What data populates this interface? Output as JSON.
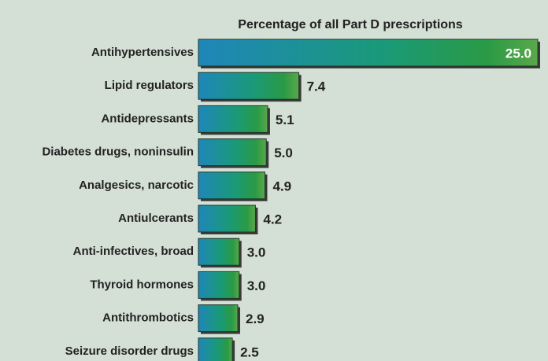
{
  "chart_data": {
    "type": "bar",
    "orientation": "horizontal",
    "subtitle": "Percentage of all Part D prescriptions",
    "categories": [
      "Antihypertensives",
      "Lipid regulators",
      "Antidepressants",
      "Diabetes drugs, noninsulin",
      "Analgesics, narcotic",
      "Antiulcerants",
      "Anti-infectives, broad",
      "Thyroid hormones",
      "Antithrombotics",
      "Seizure disorder drugs"
    ],
    "values": [
      25.0,
      7.4,
      5.1,
      5.0,
      4.9,
      4.2,
      3.0,
      3.0,
      2.9,
      2.5
    ],
    "value_labels": [
      "25.0",
      "7.4",
      "5.1",
      "5.0",
      "4.9",
      "4.2",
      "3.0",
      "3.0",
      "2.9",
      "2.5"
    ],
    "xlim": [
      0,
      25
    ]
  }
}
